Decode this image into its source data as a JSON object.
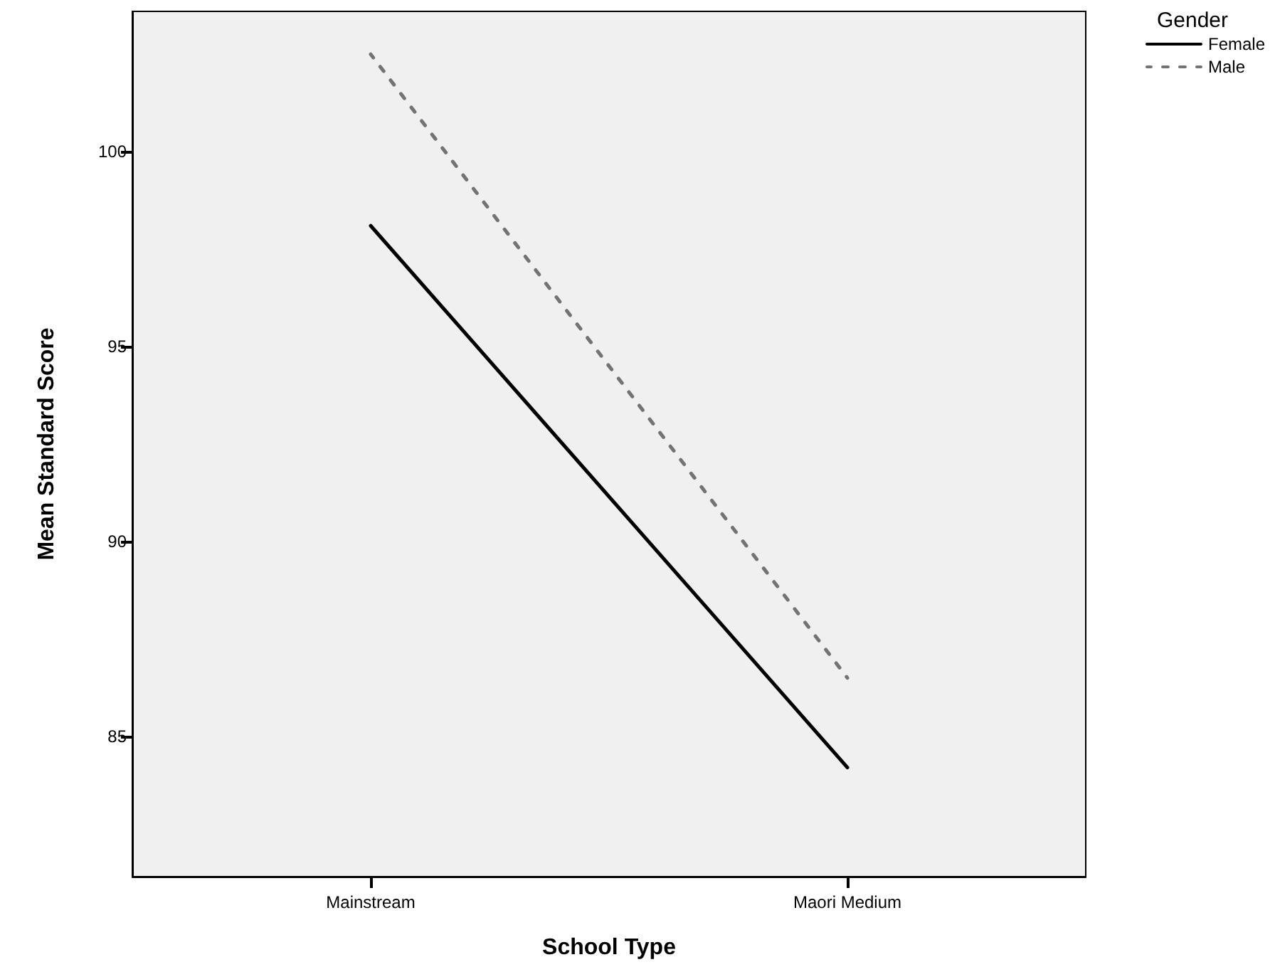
{
  "chart_data": {
    "type": "line",
    "xlabel": "School Type",
    "ylabel": "Mean Standard Score",
    "legend_title": "Gender",
    "categories": [
      "Mainstream",
      "Maori Medium"
    ],
    "series": [
      {
        "name": "Female",
        "color": "#000000",
        "line_style": "solid",
        "values": [
          98.1,
          84.2
        ]
      },
      {
        "name": "Male",
        "color": "#737373",
        "line_style": "dashed",
        "values": [
          102.5,
          86.5
        ]
      }
    ],
    "ylim": [
      81.4,
      103.6
    ],
    "yticks": [
      85,
      90,
      95,
      100
    ],
    "grid": false,
    "legend": "top right",
    "marker": "none"
  }
}
